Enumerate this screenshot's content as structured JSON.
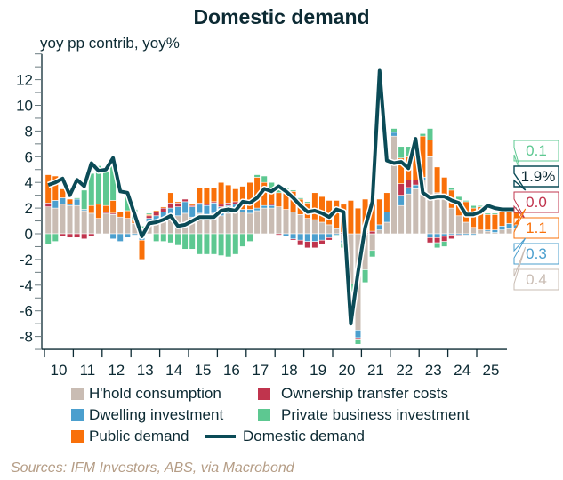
{
  "title": "Domestic demand",
  "source": "Sources: IFM Investors, ABS, via Macrobond",
  "chart_data": {
    "type": "bar",
    "stacked": true,
    "title": "Domestic demand",
    "ylabel": "yoy pp contrib, yoy%",
    "xlabel": "",
    "ylim": [
      -9,
      14
    ],
    "yticks": [
      -8,
      -6,
      -4,
      -2,
      0,
      2,
      4,
      6,
      8,
      10,
      12
    ],
    "xticks": [
      "10",
      "11",
      "12",
      "13",
      "14",
      "15",
      "16",
      "17",
      "18",
      "19",
      "20",
      "21",
      "22",
      "23",
      "24",
      "25"
    ],
    "x_start": 2009.75,
    "x_step": 0.25,
    "legend_position": "bottom",
    "series": [
      {
        "name": "H'hold consumption",
        "color": "#c9bcb3",
        "type": "bar",
        "values": [
          2.1,
          2.0,
          2.3,
          2.2,
          2.2,
          1.8,
          1.6,
          1.2,
          1.6,
          1.5,
          1.3,
          1.2,
          0.8,
          0.3,
          0.7,
          0.9,
          1.0,
          1.2,
          1.4,
          1.6,
          1.3,
          1.6,
          1.5,
          1.6,
          1.4,
          1.6,
          1.8,
          1.7,
          1.6,
          1.8,
          2.0,
          2.0,
          2.1,
          1.9,
          1.7,
          1.5,
          1.2,
          1.1,
          0.9,
          0.7,
          0.4,
          -0.5,
          -3.9,
          -7.5,
          -2.8,
          -1.3,
          0.3,
          0.9,
          7.6,
          2.2,
          3.1,
          3.5,
          4.2,
          6.0,
          3.2,
          2.7,
          2.0,
          1.4,
          0.9,
          0.5,
          0.3,
          0.2,
          0.1,
          0.3,
          0.4,
          0.4
        ]
      },
      {
        "name": "Dwelling investment",
        "color": "#4b9fce",
        "type": "bar",
        "values": [
          0.0,
          0.6,
          0.5,
          0.1,
          0.5,
          0.1,
          0.0,
          0.0,
          0.0,
          -0.4,
          -0.6,
          -0.3,
          -0.1,
          -0.5,
          0.5,
          0.5,
          0.7,
          0.8,
          0.7,
          0.9,
          0.8,
          0.7,
          0.7,
          0.8,
          0.7,
          0.6,
          0.5,
          0.2,
          0.3,
          0.2,
          0.2,
          0.2,
          0.0,
          -0.2,
          -0.4,
          -0.5,
          -0.6,
          -0.6,
          -0.5,
          -0.3,
          -0.1,
          -0.2,
          0.0,
          -0.6,
          0.0,
          0.0,
          0.4,
          0.8,
          0.3,
          0.8,
          0.5,
          0.3,
          0.2,
          -0.3,
          -0.3,
          -0.2,
          -0.1,
          -0.1,
          -0.1,
          -0.1,
          0.0,
          0.1,
          0.2,
          0.3,
          0.4,
          0.3
        ]
      },
      {
        "name": "Ownership transfer costs",
        "color": "#c0344d",
        "type": "bar",
        "values": [
          0.3,
          0.0,
          -0.2,
          -0.3,
          -0.3,
          -0.4,
          -0.2,
          0.0,
          0.1,
          0.1,
          0.0,
          0.0,
          0.0,
          0.1,
          0.2,
          0.3,
          0.3,
          0.4,
          0.3,
          0.2,
          0.1,
          0.1,
          0.1,
          0.1,
          0.2,
          0.2,
          0.2,
          0.0,
          0.0,
          0.0,
          0.0,
          0.1,
          -0.1,
          0.0,
          -0.1,
          -0.4,
          -0.5,
          -0.5,
          -0.3,
          -0.2,
          0.0,
          0.1,
          0.0,
          -0.1,
          0.1,
          0.2,
          0.0,
          0.0,
          0.0,
          0.9,
          0.6,
          0.4,
          0.0,
          -0.4,
          -0.4,
          -0.4,
          -0.3,
          -0.1,
          0.0,
          0.0,
          0.0,
          0.0,
          0.0,
          0.0,
          0.0,
          0.0
        ]
      },
      {
        "name": "Private business investment",
        "color": "#5dc891",
        "type": "bar",
        "values": [
          -0.8,
          -0.6,
          0.1,
          0.0,
          0.1,
          1.5,
          2.5,
          3.0,
          3.0,
          3.4,
          0.0,
          1.2,
          0.8,
          0.2,
          0.1,
          -0.6,
          -0.6,
          -0.7,
          -0.9,
          -1.2,
          -1.2,
          -1.6,
          -1.6,
          -1.6,
          -1.7,
          -1.8,
          -1.6,
          -1.0,
          -0.6,
          0.2,
          0.5,
          0.5,
          0.5,
          0.2,
          0.1,
          0.1,
          0.1,
          0.0,
          0.0,
          0.0,
          -0.1,
          -0.4,
          -0.6,
          -0.4,
          -1.0,
          -0.5,
          0.0,
          0.0,
          0.3,
          0.9,
          0.8,
          0.6,
          0.2,
          0.9,
          -0.4,
          -0.4,
          0.2,
          0.3,
          0.1,
          0.2,
          0.1,
          0.1,
          0.1,
          0.1,
          0.1,
          0.1
        ]
      },
      {
        "name": "Public demand",
        "color": "#f97009",
        "type": "bar",
        "values": [
          2.2,
          1.9,
          0.7,
          0.4,
          0.0,
          0.0,
          0.6,
          1.1,
          0.5,
          1.0,
          0.4,
          0.6,
          0.3,
          -1.5,
          0.1,
          0.1,
          0.1,
          0.8,
          0.1,
          0.0,
          0.1,
          1.2,
          1.3,
          1.1,
          1.7,
          1.4,
          1.0,
          1.8,
          2.1,
          2.4,
          1.8,
          1.2,
          1.1,
          1.5,
          1.6,
          1.2,
          1.2,
          2.1,
          2.0,
          1.9,
          2.2,
          2.2,
          2.6,
          2.0,
          2.6,
          2.2,
          2.0,
          1.5,
          0.0,
          2.0,
          1.8,
          2.0,
          3.2,
          1.3,
          2.0,
          1.7,
          1.4,
          1.2,
          1.6,
          1.5,
          1.8,
          1.2,
          1.2,
          1.1,
          1.1,
          1.1
        ]
      },
      {
        "name": "Domestic demand",
        "color": "#0b4b57",
        "type": "line",
        "values": [
          3.8,
          4.0,
          4.3,
          3.0,
          4.2,
          3.7,
          5.5,
          4.9,
          5.0,
          5.9,
          3.3,
          3.2,
          1.5,
          -0.2,
          0.8,
          0.9,
          1.1,
          1.4,
          0.6,
          0.7,
          1.0,
          1.3,
          1.3,
          1.3,
          1.8,
          1.9,
          1.8,
          2.5,
          2.4,
          2.8,
          3.5,
          3.3,
          3.7,
          3.3,
          2.8,
          2.2,
          1.7,
          1.8,
          1.6,
          1.3,
          1.9,
          1.7,
          -7.0,
          -3.0,
          0.5,
          2.5,
          12.7,
          5.7,
          5.5,
          5.6,
          5.1,
          7.4,
          3.2,
          2.8,
          2.9,
          2.9,
          2.6,
          2.4,
          1.5,
          1.5,
          1.7,
          2.2,
          2.0,
          1.9,
          1.9,
          1.9
        ]
      }
    ],
    "latest_labels": [
      {
        "series": "Private business investment",
        "label": "0.1"
      },
      {
        "series": "Domestic demand",
        "label": "1.9%"
      },
      {
        "series": "Ownership transfer costs",
        "label": "0.0"
      },
      {
        "series": "Public demand",
        "label": "1.1"
      },
      {
        "series": "Dwelling investment",
        "label": "0.3"
      },
      {
        "series": "H'hold consumption",
        "label": "0.4"
      }
    ]
  },
  "legend": [
    {
      "label": "H'hold consumption",
      "color": "#c9bcb3",
      "kind": "box"
    },
    {
      "label": "Ownership transfer costs",
      "color": "#c0344d",
      "kind": "box"
    },
    {
      "label": "Dwelling investment",
      "color": "#4b9fce",
      "kind": "box"
    },
    {
      "label": "Private business investment",
      "color": "#5dc891",
      "kind": "box"
    },
    {
      "label": "Public demand",
      "color": "#f97009",
      "kind": "box"
    },
    {
      "label": "Domestic demand",
      "color": "#0b4b57",
      "kind": "line"
    }
  ]
}
